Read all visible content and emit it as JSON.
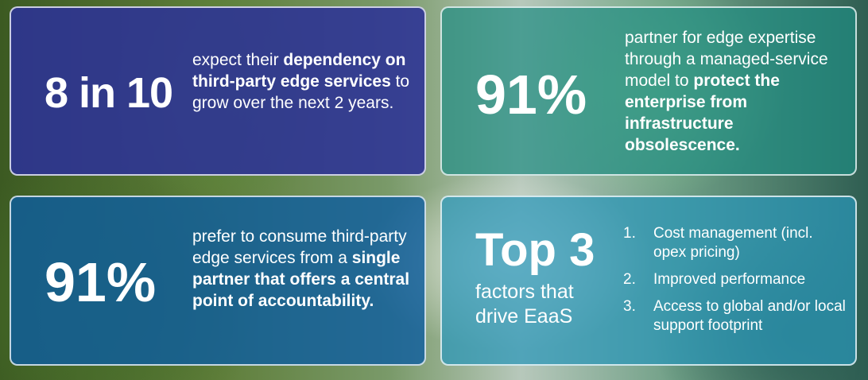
{
  "cards": [
    {
      "stat": "8 in 10",
      "desc_pre": "expect their ",
      "desc_bold": "dependency on third-party edge services",
      "desc_post": " to grow over the next 2 years."
    },
    {
      "stat": "91%",
      "desc_pre": "partner for edge expertise through a managed-service model to ",
      "desc_bold": "protect the enterprise from infrastructure obsolescence.",
      "desc_post": ""
    },
    {
      "stat": "91%",
      "desc_pre": "prefer to consume third-party edge services from a ",
      "desc_bold": "single partner that offers a central point of accountability.",
      "desc_post": ""
    },
    {
      "stat": "Top 3",
      "subtitle": "factors that drive EaaS",
      "factors": [
        {
          "num": "1.",
          "text": "Cost management (incl. opex pricing)"
        },
        {
          "num": "2.",
          "text": "Improved performance"
        },
        {
          "num": "3.",
          "text": "Access to global and/or local support footprint"
        }
      ]
    }
  ],
  "colors": {
    "card1_bg": "#2c3296",
    "card2_bg": "#1e8c82",
    "card3_bg": "#0c5ca0",
    "card4_bg": "#2896b9",
    "text": "#ffffff",
    "border": "#ffffff"
  }
}
